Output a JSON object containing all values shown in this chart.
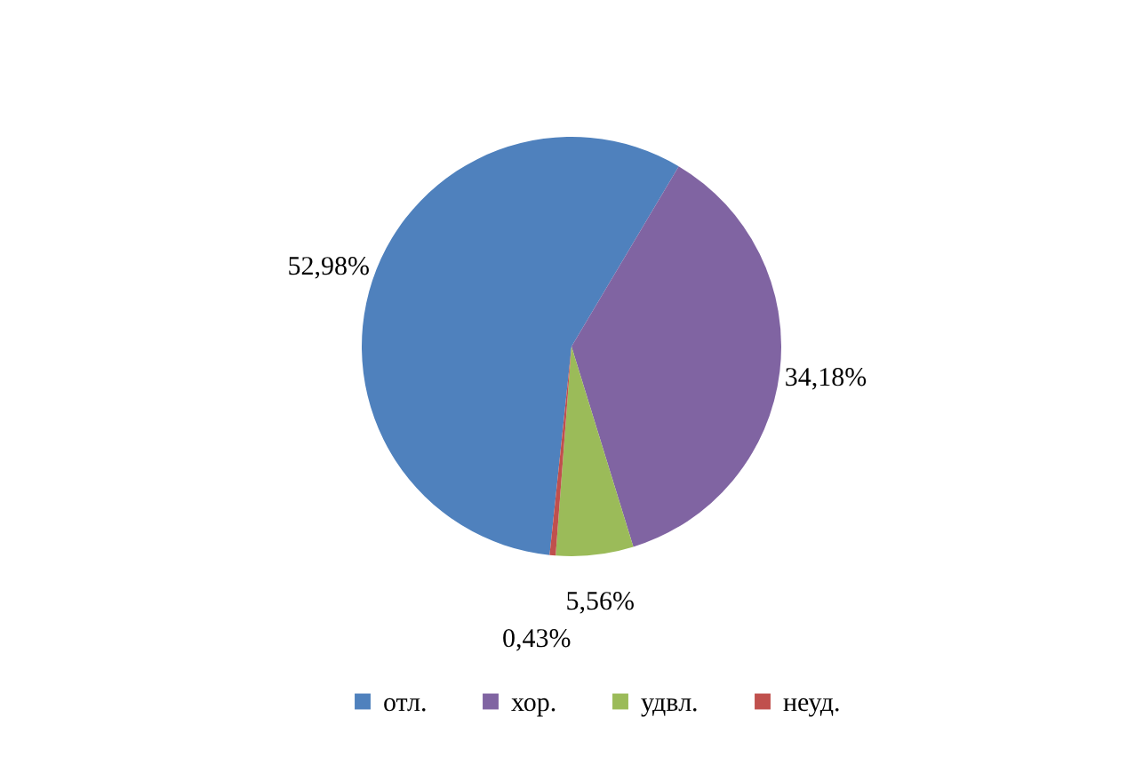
{
  "chart_data": {
    "type": "pie",
    "categories": [
      "отл.",
      "хор.",
      "удвл.",
      "неуд."
    ],
    "values": [
      52.98,
      34.18,
      5.56,
      0.43
    ],
    "colors": [
      "#4f81bd",
      "#8064a2",
      "#9bbb59",
      "#c0504d"
    ],
    "value_labels": [
      "52,98%",
      "34,18%",
      "5,56%",
      "0,43%"
    ],
    "legend": "bottom"
  }
}
